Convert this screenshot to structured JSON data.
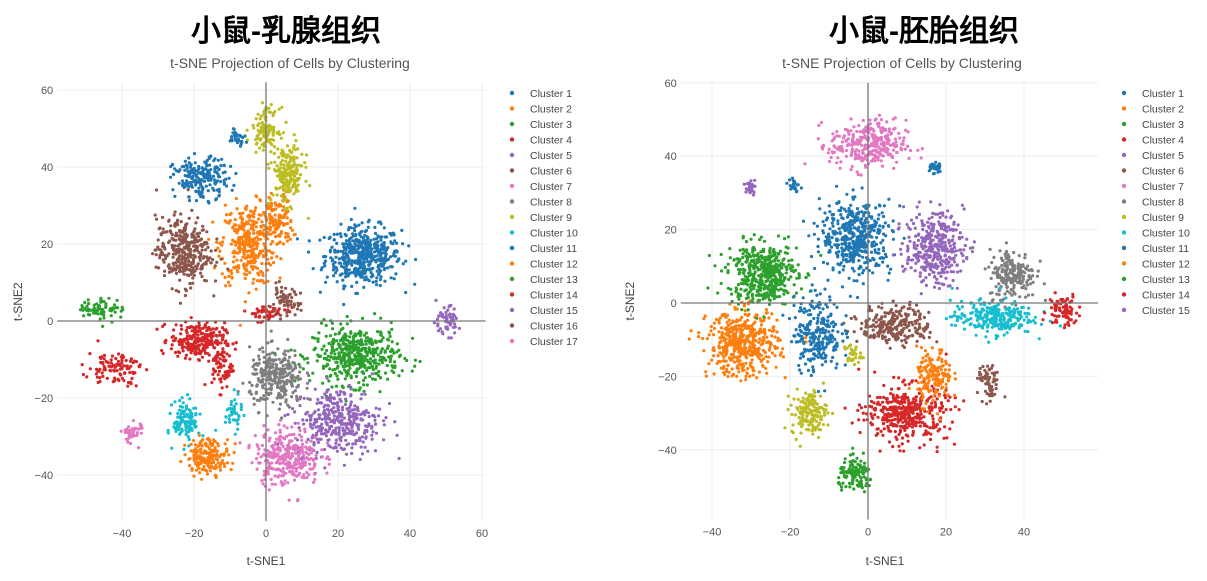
{
  "chart_data": [
    {
      "type": "scatter",
      "heading": "小鼠-乳腺组织",
      "title": "t-SNE Projection of Cells by Clustering",
      "xlabel": "t-SNE1",
      "ylabel": "t-SNE2",
      "xlim": [
        -58,
        61
      ],
      "ylim": [
        -52,
        62
      ],
      "xticks": [
        -40,
        -20,
        0,
        20,
        40,
        60
      ],
      "yticks": [
        -40,
        -20,
        0,
        20,
        40,
        60
      ],
      "grid": true,
      "zero_lines": true,
      "legend_position": "right",
      "series": [
        {
          "name": "Cluster 1",
          "color": "#1f77b4",
          "blobs": [
            {
              "center": [
                27,
                17
              ],
              "spread": [
                7,
                5
              ],
              "n": 480
            }
          ]
        },
        {
          "name": "Cluster 2",
          "color": "#ff7f0e",
          "blobs": [
            {
              "center": [
                -5,
                20
              ],
              "spread": [
                5,
                7
              ],
              "n": 330
            },
            {
              "center": [
                3,
                26
              ],
              "spread": [
                3,
                5
              ],
              "n": 120
            }
          ]
        },
        {
          "name": "Cluster 3",
          "color": "#2ca02c",
          "blobs": [
            {
              "center": [
                25,
                -9
              ],
              "spread": [
                8,
                5
              ],
              "n": 450
            }
          ]
        },
        {
          "name": "Cluster 4",
          "color": "#d62728",
          "blobs": [
            {
              "center": [
                -19,
                -5
              ],
              "spread": [
                5,
                3
              ],
              "n": 250
            },
            {
              "center": [
                -12,
                -12
              ],
              "spread": [
                2,
                4
              ],
              "n": 70
            }
          ]
        },
        {
          "name": "Cluster 5",
          "color": "#9467bd",
          "blobs": [
            {
              "center": [
                20,
                -26
              ],
              "spread": [
                8,
                6
              ],
              "n": 360
            }
          ]
        },
        {
          "name": "Cluster 6",
          "color": "#8c564b",
          "blobs": [
            {
              "center": [
                -23,
                18
              ],
              "spread": [
                5,
                6
              ],
              "n": 340
            }
          ]
        },
        {
          "name": "Cluster 7",
          "color": "#e377c2",
          "blobs": [
            {
              "center": [
                6,
                -35
              ],
              "spread": [
                6,
                5
              ],
              "n": 300
            }
          ]
        },
        {
          "name": "Cluster 8",
          "color": "#7f7f7f",
          "blobs": [
            {
              "center": [
                3,
                -15
              ],
              "spread": [
                5,
                5
              ],
              "n": 280
            }
          ]
        },
        {
          "name": "Cluster 9",
          "color": "#bcbd22",
          "blobs": [
            {
              "center": [
                0,
                50
              ],
              "spread": [
                2.5,
                3.5
              ],
              "n": 110
            },
            {
              "center": [
                6,
                38
              ],
              "spread": [
                3,
                5
              ],
              "n": 190
            }
          ]
        },
        {
          "name": "Cluster 10",
          "color": "#17becf",
          "blobs": [
            {
              "center": [
                -22,
                -26
              ],
              "spread": [
                2.5,
                3.5
              ],
              "n": 120
            },
            {
              "center": [
                -9,
                -24
              ],
              "spread": [
                1.5,
                3
              ],
              "n": 40
            }
          ]
        },
        {
          "name": "Cluster 11",
          "color": "#1f77b4",
          "blobs": [
            {
              "center": [
                -18,
                37
              ],
              "spread": [
                5,
                3.5
              ],
              "n": 200
            },
            {
              "center": [
                -8,
                48
              ],
              "spread": [
                1.5,
                1.5
              ],
              "n": 30
            }
          ]
        },
        {
          "name": "Cluster 12",
          "color": "#ff7f0e",
          "blobs": [
            {
              "center": [
                -16,
                -35
              ],
              "spread": [
                4,
                3
              ],
              "n": 180
            }
          ]
        },
        {
          "name": "Cluster 13",
          "color": "#2ca02c",
          "blobs": [
            {
              "center": [
                -46,
                3
              ],
              "spread": [
                4,
                2
              ],
              "n": 70
            }
          ]
        },
        {
          "name": "Cluster 14",
          "color": "#d62728",
          "blobs": [
            {
              "center": [
                -42,
                -12
              ],
              "spread": [
                5,
                3
              ],
              "n": 100
            },
            {
              "center": [
                0,
                2
              ],
              "spread": [
                4,
                1.5
              ],
              "n": 50
            }
          ]
        },
        {
          "name": "Cluster 15",
          "color": "#9467bd",
          "blobs": [
            {
              "center": [
                50,
                0
              ],
              "spread": [
                2.5,
                2.5
              ],
              "n": 60
            }
          ]
        },
        {
          "name": "Cluster 16",
          "color": "#8c564b",
          "blobs": [
            {
              "center": [
                5,
                5
              ],
              "spread": [
                3,
                2.5
              ],
              "n": 60
            }
          ]
        },
        {
          "name": "Cluster 17",
          "color": "#e377c2",
          "blobs": [
            {
              "center": [
                -37,
                -29
              ],
              "spread": [
                2,
                2
              ],
              "n": 40
            }
          ]
        }
      ]
    },
    {
      "type": "scatter",
      "heading": "小鼠-胚胎组织",
      "title": "t-SNE Projection of Cells by Clustering",
      "xlabel": "t-SNE1",
      "ylabel": "t-SNE2",
      "xlim": [
        -48,
        59
      ],
      "ylim": [
        -59,
        60
      ],
      "xticks": [
        -40,
        -20,
        0,
        20,
        40
      ],
      "yticks": [
        -40,
        -20,
        0,
        20,
        40,
        60
      ],
      "grid": true,
      "zero_lines": true,
      "legend_position": "right",
      "series": [
        {
          "name": "Cluster 1",
          "color": "#1f77b4",
          "blobs": [
            {
              "center": [
                -3,
                18
              ],
              "spread": [
                6,
                6.5
              ],
              "n": 450
            }
          ]
        },
        {
          "name": "Cluster 2",
          "color": "#ff7f0e",
          "blobs": [
            {
              "center": [
                -32,
                -11
              ],
              "spread": [
                6,
                6
              ],
              "n": 450
            }
          ]
        },
        {
          "name": "Cluster 3",
          "color": "#2ca02c",
          "blobs": [
            {
              "center": [
                -27,
                8
              ],
              "spread": [
                6,
                5.5
              ],
              "n": 450
            }
          ]
        },
        {
          "name": "Cluster 4",
          "color": "#d62728",
          "blobs": [
            {
              "center": [
                10,
                -30
              ],
              "spread": [
                7,
                5
              ],
              "n": 400
            }
          ]
        },
        {
          "name": "Cluster 5",
          "color": "#9467bd",
          "blobs": [
            {
              "center": [
                17,
                15
              ],
              "spread": [
                5,
                6.5
              ],
              "n": 350
            }
          ]
        },
        {
          "name": "Cluster 6",
          "color": "#8c564b",
          "blobs": [
            {
              "center": [
                7,
                -6
              ],
              "spread": [
                6,
                3.5
              ],
              "n": 250
            },
            {
              "center": [
                31,
                -22
              ],
              "spread": [
                1.8,
                3.5
              ],
              "n": 60
            }
          ]
        },
        {
          "name": "Cluster 7",
          "color": "#e377c2",
          "blobs": [
            {
              "center": [
                0,
                43
              ],
              "spread": [
                6.5,
                4.5
              ],
              "n": 300
            }
          ]
        },
        {
          "name": "Cluster 8",
          "color": "#7f7f7f",
          "blobs": [
            {
              "center": [
                37,
                8
              ],
              "spread": [
                4,
                4.5
              ],
              "n": 200
            }
          ]
        },
        {
          "name": "Cluster 9",
          "color": "#bcbd22",
          "blobs": [
            {
              "center": [
                -15,
                -30
              ],
              "spread": [
                3,
                4
              ],
              "n": 150
            },
            {
              "center": [
                -4,
                -14
              ],
              "spread": [
                1.5,
                2
              ],
              "n": 30
            }
          ]
        },
        {
          "name": "Cluster 10",
          "color": "#17becf",
          "blobs": [
            {
              "center": [
                32,
                -4
              ],
              "spread": [
                7,
                3
              ],
              "n": 250
            }
          ]
        },
        {
          "name": "Cluster 11",
          "color": "#1f77b4",
          "blobs": [
            {
              "center": [
                -13,
                -8
              ],
              "spread": [
                4,
                7
              ],
              "n": 250
            },
            {
              "center": [
                17,
                37
              ],
              "spread": [
                1.2,
                1.2
              ],
              "n": 30
            },
            {
              "center": [
                -19,
                32
              ],
              "spread": [
                1,
                1.5
              ],
              "n": 25
            }
          ]
        },
        {
          "name": "Cluster 12",
          "color": "#ff7f0e",
          "blobs": [
            {
              "center": [
                17,
                -20
              ],
              "spread": [
                3,
                5
              ],
              "n": 150
            }
          ]
        },
        {
          "name": "Cluster 13",
          "color": "#2ca02c",
          "blobs": [
            {
              "center": [
                -3,
                -47
              ],
              "spread": [
                3,
                3
              ],
              "n": 120
            }
          ]
        },
        {
          "name": "Cluster 14",
          "color": "#d62728",
          "blobs": [
            {
              "center": [
                50,
                -2
              ],
              "spread": [
                2.5,
                3
              ],
              "n": 80
            }
          ]
        },
        {
          "name": "Cluster 15",
          "color": "#9467bd",
          "blobs": [
            {
              "center": [
                -30,
                32
              ],
              "spread": [
                1.2,
                1.5
              ],
              "n": 30
            }
          ]
        }
      ]
    }
  ]
}
